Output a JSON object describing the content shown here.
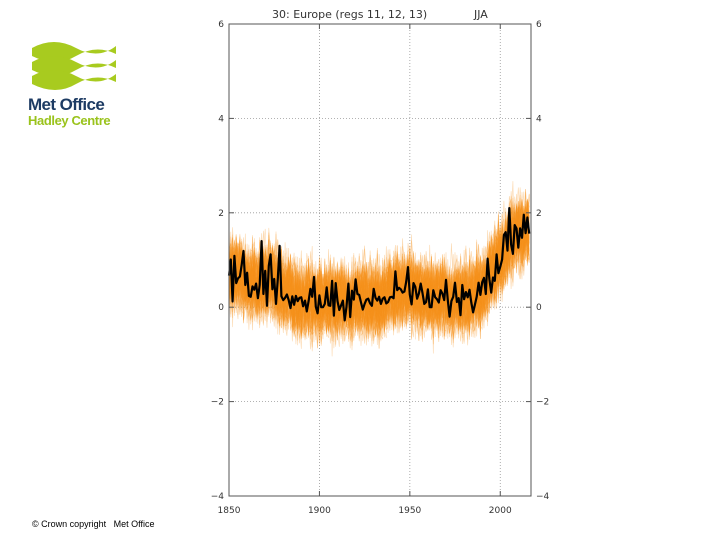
{
  "logo": {
    "name_line1": "Met Office",
    "name_line2": "Hadley Centre",
    "brand_green": "#a8cb1f",
    "brand_blue": "#1d3b63"
  },
  "footer": {
    "copyright": "© Crown copyright   Met Office"
  },
  "chart_data": {
    "type": "line",
    "title": "30: Europe (regs 11, 12, 13)",
    "season": "JJA",
    "xlabel": "",
    "ylabel": "",
    "xlim": [
      1850,
      2017
    ],
    "ylim": [
      -4,
      6
    ],
    "x_ticks": [
      1850,
      1900,
      1950,
      2000
    ],
    "y_ticks": [
      -4,
      -2,
      0,
      2,
      4,
      6
    ],
    "y_tick_labels": [
      "−4",
      "−2",
      "0",
      "2",
      "4",
      "6"
    ],
    "grid": true,
    "ensemble_color": "#f7931e",
    "observed_color": "#000000",
    "ensemble_members": 100,
    "series": [
      {
        "x_start": 1850,
        "x_end": 2016,
        "values": [
          0.67,
          1.01,
          0.12,
          1.09,
          0.51,
          0.61,
          0.65,
          0.9,
          1.19,
          0.47,
          0.73,
          0.24,
          0.22,
          0.44,
          0.37,
          0.5,
          0.19,
          0.47,
          1.4,
          0.28,
          0.77,
          0.03,
          0.88,
          1.12,
          0.38,
          0.6,
          0.07,
          0.6,
          1.3,
          0.23,
          0.15,
          0.2,
          0.27,
          0.15,
          -0.02,
          0.23,
          0.05,
          0.24,
          0.13,
          0.2,
          0.21,
          0.02,
          0.14,
          -0.09,
          0.13,
          0.39,
          0.22,
          0.64,
          0.01,
          -0.13,
          0.25,
          0.0,
          -0.0,
          0.07,
          0.42,
          0.04,
          0.03,
          0.56,
          -0.18,
          0.51,
          0.13,
          -0.06,
          0.04,
          0.14,
          -0.28,
          0.01,
          0.5,
          -0.21,
          0.35,
          0.16,
          0.59,
          0.28,
          0.26,
          0.1,
          -0.05,
          0.07,
          0.16,
          0.18,
          0.08,
          0.03,
          0.39,
          0.2,
          0.14,
          0.22,
          0.07,
          0.18,
          0.21,
          0.08,
          0.11,
          0.21,
          0.22,
          0.19,
          0.76,
          0.36,
          0.41,
          0.38,
          0.31,
          0.33,
          0.54,
          0.85,
          0.27,
          0.06,
          0.51,
          0.43,
          0.18,
          0.29,
          0.5,
          0.3,
          0.07,
          0.11,
          0.38,
          0.0,
          -0.0,
          0.36,
          0.21,
          0.17,
          0.1,
          0.36,
          0.29,
          0.15,
          0.58,
          0.15,
          -0.2,
          0.13,
          0.22,
          0.52,
          0.11,
          0.19,
          -0.17,
          0.47,
          0.17,
          0.32,
          0.21,
          0.37,
          0.1,
          -0.11,
          0.05,
          0.22,
          0.52,
          0.26,
          0.53,
          0.62,
          0.28,
          1.03,
          0.59,
          0.31,
          0.63,
          0.56,
          1.12,
          0.72,
          0.86,
          1.01,
          1.53,
          1.59,
          1.2,
          2.1,
          1.33,
          1.13,
          1.74,
          1.67,
          1.26,
          1.67,
          1.47,
          1.96,
          1.57,
          1.9,
          1.56
        ]
      }
    ]
  }
}
